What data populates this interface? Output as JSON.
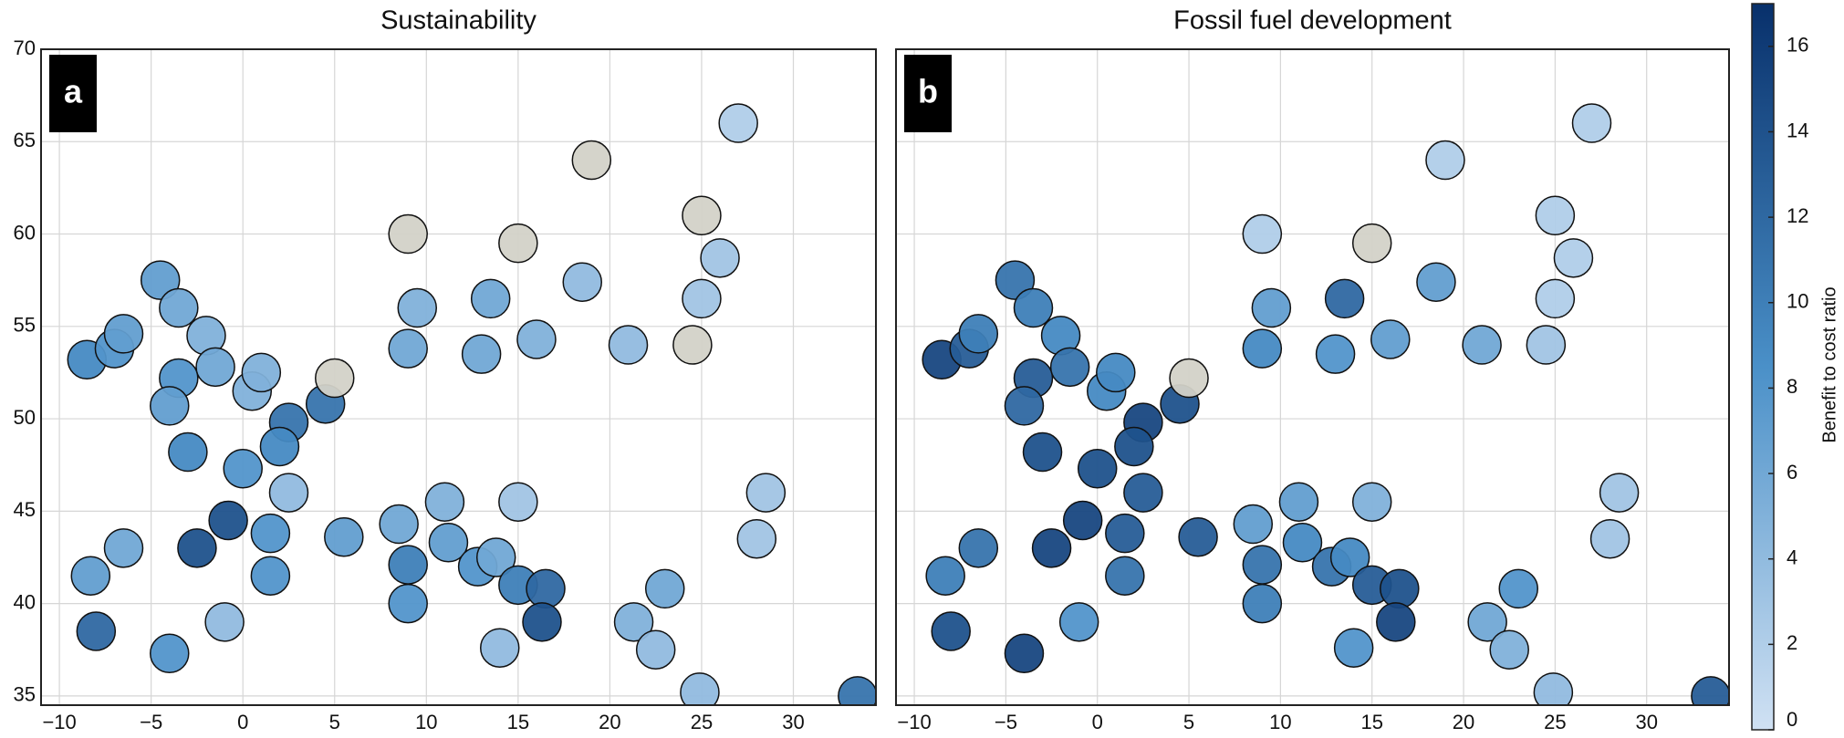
{
  "chart_data": [
    {
      "type": "map",
      "title": "Sustainability",
      "panel_label": "a",
      "grid": true,
      "xlim": [
        -11,
        34.5
      ],
      "ylim": [
        34.5,
        70
      ],
      "xticks": [
        {
          "value": -10,
          "label": "−10"
        },
        {
          "value": -5,
          "label": "−5"
        },
        0,
        5,
        10,
        15,
        20,
        25,
        30
      ],
      "yticks": [
        35,
        40,
        45,
        50,
        55,
        60,
        65,
        70
      ],
      "lon": [
        -8.5,
        -7,
        -6.5,
        -4.5,
        -3.5,
        -2,
        -3.5,
        -1.5,
        -4,
        0.5,
        1,
        -3,
        2.5,
        2,
        0,
        -0.8,
        1.5,
        2.5,
        4.5,
        5,
        9,
        9.5,
        13,
        16,
        21,
        24.5,
        25,
        26,
        13.5,
        15,
        19,
        9,
        25,
        27,
        18.5,
        -6.5,
        -2.5,
        -8.3,
        -8,
        -4,
        -1,
        1.5,
        5.5,
        8.5,
        9,
        9,
        11,
        11.2,
        12.8,
        13.8,
        15,
        16.5,
        16.3,
        14,
        15,
        23,
        21.3,
        22.5,
        24.9,
        28,
        28.5,
        33.5
      ],
      "lat": [
        53.2,
        53.8,
        54.6,
        57.5,
        56,
        54.5,
        52.2,
        52.8,
        50.7,
        51.5,
        52.5,
        48.2,
        49.8,
        48.5,
        47.3,
        44.5,
        43.8,
        46,
        50.8,
        52.2,
        53.8,
        56,
        53.5,
        54.3,
        54,
        54,
        56.5,
        58.7,
        56.5,
        59.5,
        64,
        60,
        61,
        66,
        57.4,
        43,
        43,
        41.5,
        38.5,
        37.3,
        39,
        41.5,
        43.6,
        44.3,
        42.1,
        40,
        45.5,
        43.3,
        42,
        42.5,
        41,
        40.8,
        39,
        37.6,
        45.5,
        40.8,
        39,
        37.5,
        35.2,
        43.5,
        46,
        35
      ],
      "values": [
        9,
        8,
        7,
        7,
        6,
        5,
        8,
        6,
        7,
        5,
        5,
        9,
        11,
        9,
        8,
        14,
        8,
        4,
        11,
        null,
        6,
        5,
        6,
        5,
        4,
        null,
        3,
        3,
        6,
        null,
        null,
        null,
        null,
        2,
        4,
        6,
        14,
        7,
        12,
        8,
        4,
        8,
        7,
        6,
        10,
        8,
        5,
        7,
        8,
        6,
        10,
        12,
        14,
        4,
        3,
        6,
        5,
        4,
        4,
        3,
        3,
        11
      ]
    },
    {
      "type": "map",
      "title": "Fossil fuel development",
      "panel_label": "b",
      "grid": true,
      "ytick_labels": false,
      "xlim": [
        -11,
        34.5
      ],
      "ylim": [
        34.5,
        70
      ],
      "xticks": [
        {
          "value": -10,
          "label": "−10"
        },
        {
          "value": -5,
          "label": "−5"
        },
        0,
        5,
        10,
        15,
        20,
        25,
        30
      ],
      "yticks": [
        35,
        40,
        45,
        50,
        55,
        60,
        65,
        70
      ],
      "lon": [
        -8.5,
        -7,
        -6.5,
        -4.5,
        -3.5,
        -2,
        -3.5,
        -1.5,
        -4,
        0.5,
        1,
        -3,
        2.5,
        2,
        0,
        -0.8,
        1.5,
        2.5,
        4.5,
        5,
        9,
        9.5,
        13,
        16,
        21,
        24.5,
        25,
        26,
        13.5,
        15,
        19,
        9,
        25,
        27,
        18.5,
        -6.5,
        -2.5,
        -8.3,
        -8,
        -4,
        -1,
        1.5,
        5.5,
        8.5,
        9,
        9,
        11,
        11.2,
        12.8,
        13.8,
        15,
        16.5,
        16.3,
        14,
        15,
        23,
        21.3,
        22.5,
        24.9,
        28,
        28.5,
        33.5
      ],
      "lat": [
        53.2,
        53.8,
        54.6,
        57.5,
        56,
        54.5,
        52.2,
        52.8,
        50.7,
        51.5,
        52.5,
        48.2,
        49.8,
        48.5,
        47.3,
        44.5,
        43.8,
        46,
        50.8,
        52.2,
        53.8,
        56,
        53.5,
        54.3,
        54,
        54,
        56.5,
        58.7,
        56.5,
        59.5,
        64,
        60,
        61,
        66,
        57.4,
        43,
        43,
        41.5,
        38.5,
        37.3,
        39,
        41.5,
        43.6,
        44.3,
        42.1,
        40,
        45.5,
        43.3,
        42,
        42.5,
        41,
        40.8,
        39,
        37.6,
        45.5,
        40.8,
        39,
        37.5,
        35.2,
        43.5,
        46,
        35
      ],
      "values": [
        15,
        13,
        10,
        11,
        10,
        9,
        13,
        11,
        12,
        9,
        9,
        14,
        15,
        14,
        14,
        15,
        13,
        13,
        14,
        null,
        9,
        7,
        8,
        7,
        6,
        3,
        2,
        2,
        12,
        null,
        2,
        2,
        2,
        2,
        7,
        11,
        15,
        10,
        14,
        15,
        8,
        11,
        13,
        7,
        11,
        10,
        7,
        9,
        11,
        9,
        13,
        14,
        15,
        8,
        5,
        8,
        6,
        5,
        4,
        3,
        3,
        13
      ]
    }
  ],
  "colorbar": {
    "label": "Benefit to cost ratio",
    "clim": [
      0,
      17
    ],
    "ticks": [
      0,
      2,
      4,
      6,
      8,
      10,
      12,
      14,
      16
    ],
    "colors": [
      "#d0e1f3",
      "#4a90c8",
      "#08306b"
    ],
    "no_data_color": "#d3d2c8"
  }
}
